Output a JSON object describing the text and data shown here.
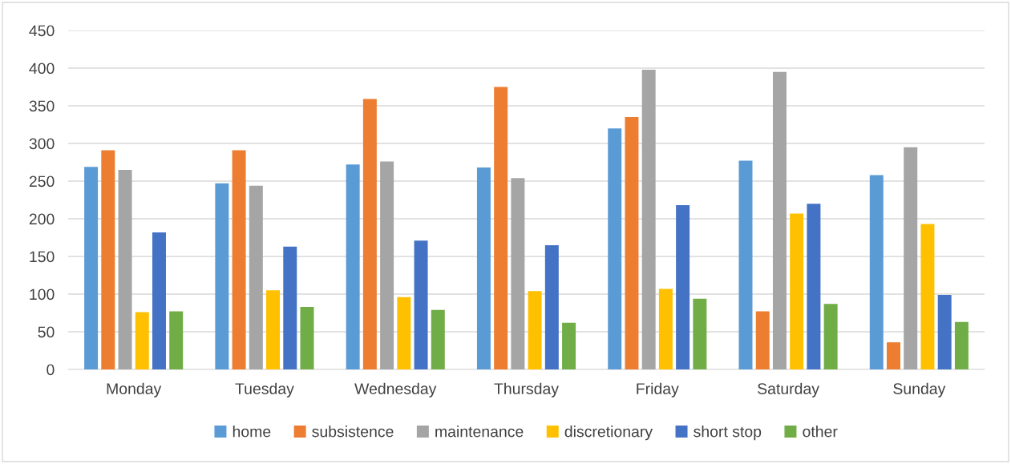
{
  "chart_data": {
    "type": "bar",
    "categories": [
      "Monday",
      "Tuesday",
      "Wednesday",
      "Thursday",
      "Friday",
      "Saturday",
      "Sunday"
    ],
    "series": [
      {
        "name": "home",
        "color": "#5b9bd5",
        "values": [
          269,
          247,
          272,
          268,
          320,
          277,
          258
        ]
      },
      {
        "name": "subsistence",
        "color": "#ed7d31",
        "values": [
          291,
          291,
          359,
          375,
          335,
          77,
          36
        ]
      },
      {
        "name": "maintenance",
        "color": "#a5a5a5",
        "values": [
          265,
          244,
          276,
          254,
          398,
          395,
          295
        ]
      },
      {
        "name": "discretionary",
        "color": "#ffc000",
        "values": [
          76,
          105,
          96,
          104,
          107,
          207,
          193
        ]
      },
      {
        "name": "short stop",
        "color": "#4472c4",
        "values": [
          182,
          163,
          171,
          165,
          218,
          220,
          99
        ]
      },
      {
        "name": "other",
        "color": "#70ad47",
        "values": [
          77,
          83,
          79,
          62,
          94,
          87,
          63
        ]
      }
    ],
    "ylim": [
      0,
      450
    ],
    "yticks": [
      0,
      50,
      100,
      150,
      200,
      250,
      300,
      350,
      400,
      450
    ],
    "grid": "y",
    "legend": "bottom"
  }
}
